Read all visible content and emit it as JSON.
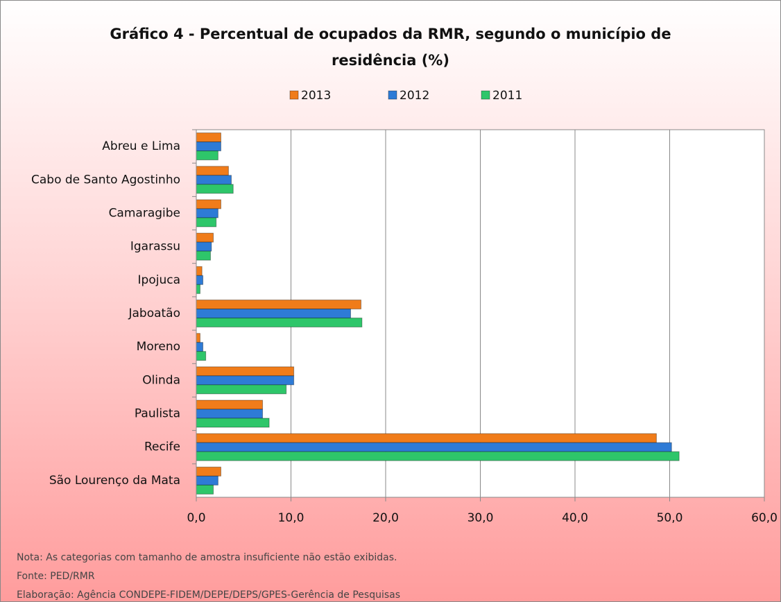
{
  "chart_data": {
    "type": "hbar",
    "title": "Gráfico 4 - Percentual de ocupados da RMR, segundo o município de residência (%)",
    "categories": [
      "Abreu e Lima",
      "Cabo de Santo Agostinho",
      "Camaragibe",
      "Igarassu",
      "Ipojuca",
      "Jaboatão",
      "Moreno",
      "Olinda",
      "Paulista",
      "Recife",
      "São Lourenço da Mata"
    ],
    "series": [
      {
        "name": "2013",
        "color": "#f07c1a",
        "values": [
          2.6,
          3.4,
          2.6,
          1.8,
          0.6,
          17.4,
          0.4,
          10.3,
          7.0,
          48.6,
          2.6
        ]
      },
      {
        "name": "2012",
        "color": "#2e7bd6",
        "values": [
          2.6,
          3.7,
          2.3,
          1.6,
          0.7,
          16.3,
          0.7,
          10.3,
          7.0,
          50.2,
          2.3
        ]
      },
      {
        "name": "2011",
        "color": "#2ec66a",
        "values": [
          2.3,
          3.9,
          2.1,
          1.5,
          0.4,
          17.5,
          1.0,
          9.5,
          7.7,
          51.0,
          1.8
        ]
      }
    ],
    "xlim": [
      0,
      60
    ],
    "xticks": [
      {
        "value": 0,
        "label": "0,0"
      },
      {
        "value": 10,
        "label": "10,0"
      },
      {
        "value": 20,
        "label": "20,0"
      },
      {
        "value": 30,
        "label": "30,0"
      },
      {
        "value": 40,
        "label": "40,0"
      },
      {
        "value": 50,
        "label": "50,0"
      },
      {
        "value": 60,
        "label": "60,0"
      }
    ],
    "grid": true,
    "legend": "top",
    "notes": [
      "Nota: As categorias com tamanho de amostra insuficiente não estão exibidas.",
      "Fonte: PED/RMR",
      "Elaboração: Agência CONDEPE-FIDEM/DEPE/DEPS/GPES-Gerência de Pesquisas"
    ]
  }
}
